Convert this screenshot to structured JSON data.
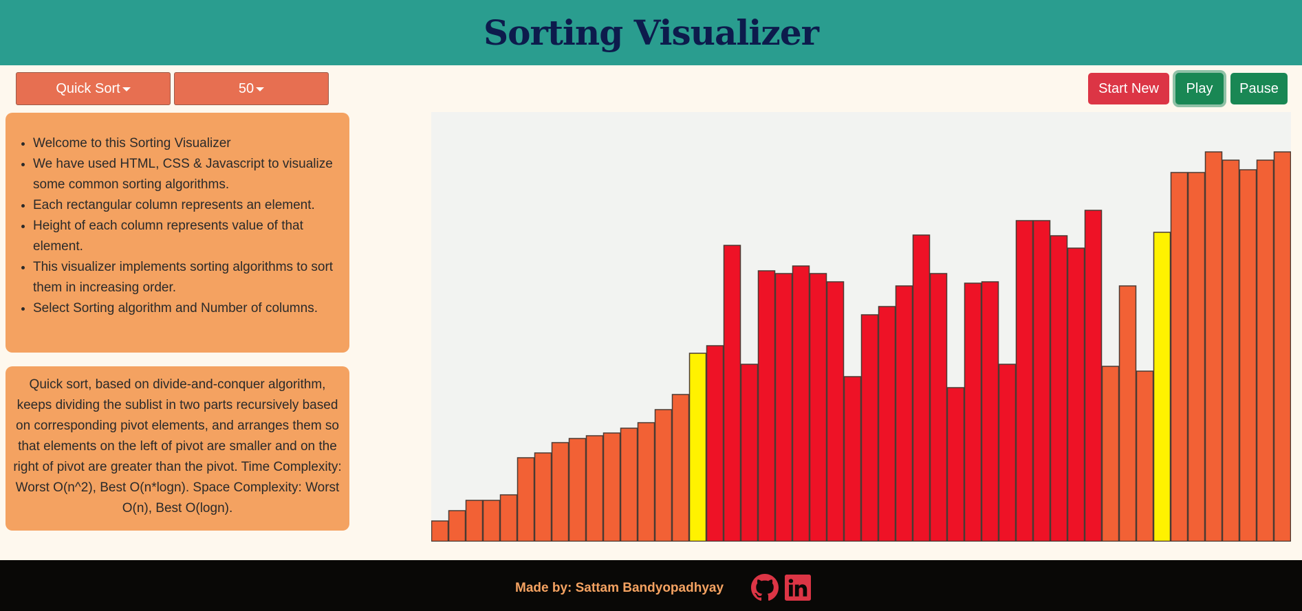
{
  "header": {
    "title": "Sorting Visualizer"
  },
  "controls": {
    "algorithm_label": "Quick Sort",
    "size_label": "50",
    "start_label": "Start New",
    "play_label": "Play",
    "pause_label": "Pause"
  },
  "intro": {
    "items": [
      "Welcome to this Sorting Visualizer",
      "We have used HTML, CSS & Javascript to visualize some common sorting algorithms.",
      "Each rectangular column represents an element.",
      "Height of each column represents value of that element.",
      "This visualizer implements sorting algorithms to sort them in increasing order.",
      "Select Sorting algorithm and Number of columns."
    ]
  },
  "description": {
    "text": "Quick sort, based on divide-and-conquer algorithm, keeps dividing the sublist in two parts recursively based on corresponding pivot elements, and arranges them so that elements on the left of pivot are smaller and on the right of pivot are greater than the pivot. Time Complexity: Worst O(n^2), Best O(n*logn). Space Complexity: Worst O(n), Best O(logn)."
  },
  "colors": {
    "default": "#f26135",
    "active": "#ee1226",
    "pivot": "#fff200"
  },
  "chart_data": {
    "type": "bar",
    "values": [
      30,
      45,
      60,
      60,
      68,
      122,
      129,
      144,
      150,
      154,
      158,
      165,
      173,
      192,
      214,
      274,
      285,
      431,
      258,
      394,
      390,
      401,
      390,
      378,
      240,
      330,
      342,
      372,
      446,
      390,
      224,
      376,
      378,
      258,
      467,
      467,
      445,
      427,
      482,
      255,
      372,
      248,
      450,
      537,
      537,
      567,
      555,
      541,
      555,
      567
    ],
    "states": [
      "default",
      "default",
      "default",
      "default",
      "default",
      "default",
      "default",
      "default",
      "default",
      "default",
      "default",
      "default",
      "default",
      "default",
      "default",
      "pivot",
      "active",
      "active",
      "active",
      "active",
      "active",
      "active",
      "active",
      "active",
      "active",
      "active",
      "active",
      "active",
      "active",
      "active",
      "active",
      "active",
      "active",
      "active",
      "active",
      "active",
      "active",
      "active",
      "active",
      "default",
      "default",
      "default",
      "pivot",
      "default",
      "default",
      "default",
      "default",
      "default",
      "default",
      "default"
    ],
    "ylim": [
      0,
      625
    ]
  },
  "footer": {
    "credit": "Made by: Sattam Bandyopadhyay",
    "github_icon": "github-icon",
    "linkedin_icon": "linkedin-icon"
  }
}
